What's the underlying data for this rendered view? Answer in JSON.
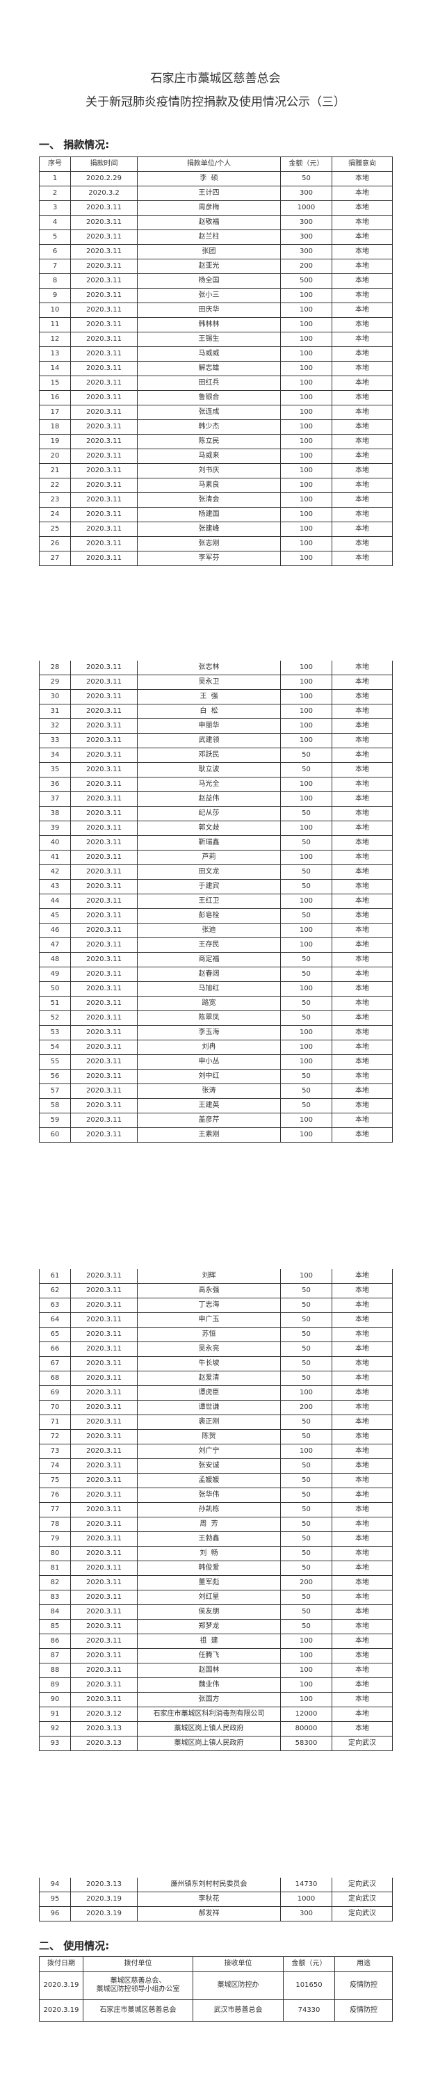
{
  "title": {
    "line1": "石家庄市藁城区慈善总会",
    "line2": "关于新冠肺炎疫情防控捐款及使用情况公示（三）"
  },
  "donations": {
    "heading": "一、 捐款情况:",
    "columns": [
      "序号",
      "捐款时间",
      "捐款单位/个人",
      "金额（元）",
      "捐赠意向"
    ],
    "rows": [
      [
        "1",
        "2020.2.29",
        "李  硕",
        "50",
        "本地"
      ],
      [
        "2",
        "2020.3.2",
        "王计四",
        "300",
        "本地"
      ],
      [
        "3",
        "2020.3.11",
        "周彦梅",
        "1000",
        "本地"
      ],
      [
        "4",
        "2020.3.11",
        "赵敬福",
        "300",
        "本地"
      ],
      [
        "5",
        "2020.3.11",
        "赵兰柱",
        "300",
        "本地"
      ],
      [
        "6",
        "2020.3.11",
        "张团",
        "300",
        "本地"
      ],
      [
        "7",
        "2020.3.11",
        "赵亚光",
        "200",
        "本地"
      ],
      [
        "8",
        "2020.3.11",
        "杨全国",
        "500",
        "本地"
      ],
      [
        "9",
        "2020.3.11",
        "张小三",
        "100",
        "本地"
      ],
      [
        "10",
        "2020.3.11",
        "田庆华",
        "100",
        "本地"
      ],
      [
        "11",
        "2020.3.11",
        "韩林林",
        "100",
        "本地"
      ],
      [
        "12",
        "2020.3.11",
        "王锡生",
        "100",
        "本地"
      ],
      [
        "13",
        "2020.3.11",
        "马威威",
        "100",
        "本地"
      ],
      [
        "14",
        "2020.3.11",
        "解志雄",
        "100",
        "本地"
      ],
      [
        "15",
        "2020.3.11",
        "田红兵",
        "100",
        "本地"
      ],
      [
        "16",
        "2020.3.11",
        "鲁银合",
        "100",
        "本地"
      ],
      [
        "17",
        "2020.3.11",
        "张连成",
        "100",
        "本地"
      ],
      [
        "18",
        "2020.3.11",
        "韩少杰",
        "100",
        "本地"
      ],
      [
        "19",
        "2020.3.11",
        "陈立民",
        "100",
        "本地"
      ],
      [
        "20",
        "2020.3.11",
        "马威来",
        "100",
        "本地"
      ],
      [
        "21",
        "2020.3.11",
        "刘书庆",
        "100",
        "本地"
      ],
      [
        "22",
        "2020.3.11",
        "马素良",
        "100",
        "本地"
      ],
      [
        "23",
        "2020.3.11",
        "张清会",
        "100",
        "本地"
      ],
      [
        "24",
        "2020.3.11",
        "杨建国",
        "100",
        "本地"
      ],
      [
        "25",
        "2020.3.11",
        "张建峰",
        "100",
        "本地"
      ],
      [
        "26",
        "2020.3.11",
        "张志刚",
        "100",
        "本地"
      ],
      [
        "27",
        "2020.3.11",
        "李军芬",
        "100",
        "本地"
      ],
      [
        "28",
        "2020.3.11",
        "张志林",
        "100",
        "本地"
      ],
      [
        "29",
        "2020.3.11",
        "吴永卫",
        "100",
        "本地"
      ],
      [
        "30",
        "2020.3.11",
        "王  强",
        "100",
        "本地"
      ],
      [
        "31",
        "2020.3.11",
        "白  松",
        "100",
        "本地"
      ],
      [
        "32",
        "2020.3.11",
        "申丽华",
        "100",
        "本地"
      ],
      [
        "33",
        "2020.3.11",
        "武建领",
        "100",
        "本地"
      ],
      [
        "34",
        "2020.3.11",
        "邓跃民",
        "50",
        "本地"
      ],
      [
        "35",
        "2020.3.11",
        "耿立波",
        "50",
        "本地"
      ],
      [
        "36",
        "2020.3.11",
        "马光全",
        "100",
        "本地"
      ],
      [
        "37",
        "2020.3.11",
        "赵益伟",
        "100",
        "本地"
      ],
      [
        "38",
        "2020.3.11",
        "纪从莎",
        "50",
        "本地"
      ],
      [
        "39",
        "2020.3.11",
        "郭文歧",
        "100",
        "本地"
      ],
      [
        "40",
        "2020.3.11",
        "靳瑞鑫",
        "50",
        "本地"
      ],
      [
        "41",
        "2020.3.11",
        "芦莉",
        "100",
        "本地"
      ],
      [
        "42",
        "2020.3.11",
        "田文龙",
        "50",
        "本地"
      ],
      [
        "43",
        "2020.3.11",
        "于建宾",
        "50",
        "本地"
      ],
      [
        "44",
        "2020.3.11",
        "王红卫",
        "100",
        "本地"
      ],
      [
        "45",
        "2020.3.11",
        "彭皂栓",
        "50",
        "本地"
      ],
      [
        "46",
        "2020.3.11",
        "张迪",
        "100",
        "本地"
      ],
      [
        "47",
        "2020.3.11",
        "王存民",
        "100",
        "本地"
      ],
      [
        "48",
        "2020.3.11",
        "商定福",
        "50",
        "本地"
      ],
      [
        "49",
        "2020.3.11",
        "赵春阔",
        "50",
        "本地"
      ],
      [
        "50",
        "2020.3.11",
        "马旭红",
        "100",
        "本地"
      ],
      [
        "51",
        "2020.3.11",
        "路宽",
        "50",
        "本地"
      ],
      [
        "52",
        "2020.3.11",
        "陈翠凤",
        "50",
        "本地"
      ],
      [
        "53",
        "2020.3.11",
        "李玉海",
        "100",
        "本地"
      ],
      [
        "54",
        "2020.3.11",
        "刘冉",
        "100",
        "本地"
      ],
      [
        "55",
        "2020.3.11",
        "申小丛",
        "100",
        "本地"
      ],
      [
        "56",
        "2020.3.11",
        "刘中红",
        "50",
        "本地"
      ],
      [
        "57",
        "2020.3.11",
        "张涛",
        "50",
        "本地"
      ],
      [
        "58",
        "2020.3.11",
        "王建英",
        "50",
        "本地"
      ],
      [
        "59",
        "2020.3.11",
        "盖彦芹",
        "100",
        "本地"
      ],
      [
        "60",
        "2020.3.11",
        "王素刚",
        "100",
        "本地"
      ],
      [
        "61",
        "2020.3.11",
        "刘辉",
        "100",
        "本地"
      ],
      [
        "62",
        "2020.3.11",
        "高永强",
        "50",
        "本地"
      ],
      [
        "63",
        "2020.3.11",
        "丁志海",
        "50",
        "本地"
      ],
      [
        "64",
        "2020.3.11",
        "申广玉",
        "50",
        "本地"
      ],
      [
        "65",
        "2020.3.11",
        "苏恒",
        "50",
        "本地"
      ],
      [
        "66",
        "2020.3.11",
        "吴永亮",
        "50",
        "本地"
      ],
      [
        "67",
        "2020.3.11",
        "牛长坡",
        "50",
        "本地"
      ],
      [
        "68",
        "2020.3.11",
        "赵爱清",
        "50",
        "本地"
      ],
      [
        "69",
        "2020.3.11",
        "谭虎臣",
        "100",
        "本地"
      ],
      [
        "70",
        "2020.3.11",
        "谭世谦",
        "200",
        "本地"
      ],
      [
        "71",
        "2020.3.11",
        "裴正刚",
        "50",
        "本地"
      ],
      [
        "72",
        "2020.3.11",
        "陈贺",
        "50",
        "本地"
      ],
      [
        "73",
        "2020.3.11",
        "刘广宁",
        "100",
        "本地"
      ],
      [
        "74",
        "2020.3.11",
        "张安诚",
        "50",
        "本地"
      ],
      [
        "75",
        "2020.3.11",
        "孟媛媛",
        "50",
        "本地"
      ],
      [
        "76",
        "2020.3.11",
        "张华伟",
        "50",
        "本地"
      ],
      [
        "77",
        "2020.3.11",
        "孙凯栋",
        "50",
        "本地"
      ],
      [
        "78",
        "2020.3.11",
        "周  芳",
        "50",
        "本地"
      ],
      [
        "79",
        "2020.3.11",
        "王勃鑫",
        "50",
        "本地"
      ],
      [
        "80",
        "2020.3.11",
        "刘  畅",
        "50",
        "本地"
      ],
      [
        "81",
        "2020.3.11",
        "韩俊爱",
        "50",
        "本地"
      ],
      [
        "82",
        "2020.3.11",
        "董军彪",
        "200",
        "本地"
      ],
      [
        "83",
        "2020.3.11",
        "刘红星",
        "50",
        "本地"
      ],
      [
        "84",
        "2020.3.11",
        "侯友朋",
        "50",
        "本地"
      ],
      [
        "85",
        "2020.3.11",
        "郑梦龙",
        "50",
        "本地"
      ],
      [
        "86",
        "2020.3.11",
        "祖  建",
        "100",
        "本地"
      ],
      [
        "87",
        "2020.3.11",
        "任腾飞",
        "100",
        "本地"
      ],
      [
        "88",
        "2020.3.11",
        "赵国林",
        "100",
        "本地"
      ],
      [
        "89",
        "2020.3.11",
        "魏业伟",
        "100",
        "本地"
      ],
      [
        "90",
        "2020.3.11",
        "张国方",
        "100",
        "本地"
      ],
      [
        "91",
        "2020.3.12",
        "石家庄市藁城区科利消毒剂有限公司",
        "12000",
        "本地"
      ],
      [
        "92",
        "2020.3.13",
        "藁城区岗上镇人民政府",
        "80000",
        "本地"
      ],
      [
        "93",
        "2020.3.13",
        "藁城区岗上镇人民政府",
        "58300",
        "定向武汉"
      ],
      [
        "94",
        "2020.3.13",
        "廉州镇东刘村村民委员会",
        "14730",
        "定向武汉"
      ],
      [
        "95",
        "2020.3.19",
        "李秋花",
        "1000",
        "定向武汉"
      ],
      [
        "96",
        "2020.3.19",
        "郝发祥",
        "300",
        "定向武汉"
      ]
    ]
  },
  "usage": {
    "heading": "二、 使用情况:",
    "columns": [
      "拨付日期",
      "拨付单位",
      "接收单位",
      "金额（元）",
      "用途"
    ],
    "rows": [
      [
        "2020.3.19",
        "藁城区慈善总会、\n藁城区防控领导小组办公室",
        "藁城区防控办",
        "101650",
        "疫情防控"
      ],
      [
        "2020.3.19",
        "石家庄市藁城区慈善总会",
        "武汉市慈善总会",
        "74330",
        "疫情防控"
      ]
    ]
  }
}
